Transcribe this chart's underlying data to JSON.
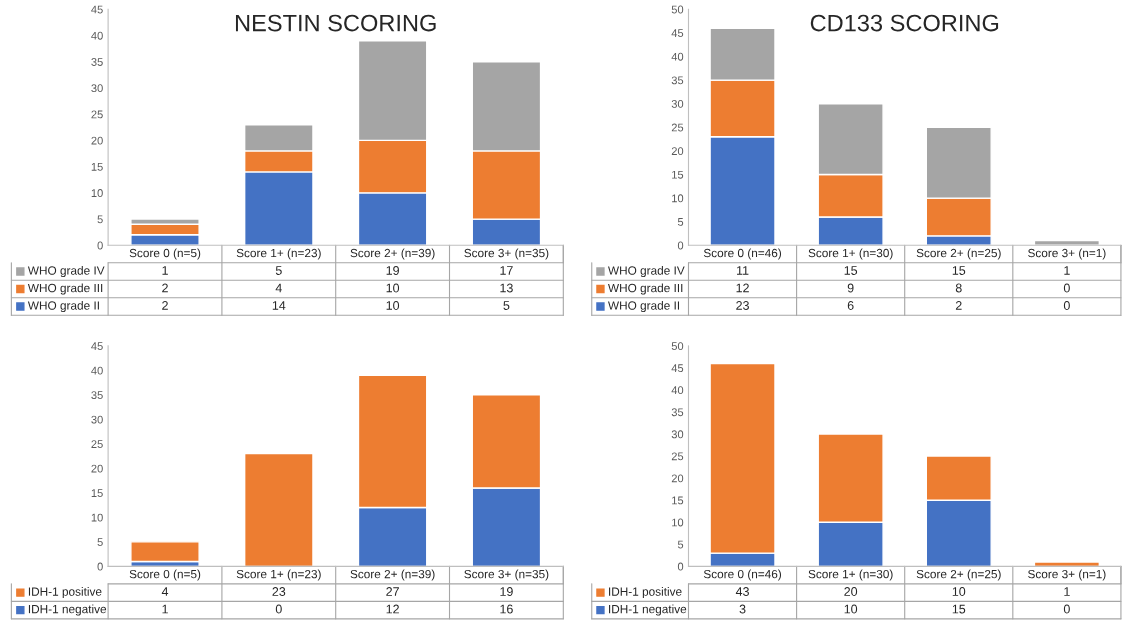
{
  "chart_data": [
    {
      "type": "bar",
      "title": "NESTIN SCORING",
      "stacked": true,
      "data_labels": true,
      "legend": "bottom",
      "grid": false,
      "categories": [
        "Score 0 (n=5)",
        "Score 1+ (n=23)",
        "Score 2+ (n=39)",
        "Score 3+ (n=35)"
      ],
      "ylim": [
        0,
        45
      ],
      "yticks": [
        0,
        5,
        10,
        15,
        20,
        25,
        30,
        35,
        40,
        45
      ],
      "series": [
        {
          "name": "WHO grade II",
          "color": "#4472c4",
          "values": [
            2,
            14,
            10,
            5
          ]
        },
        {
          "name": "WHO grade III",
          "color": "#ed7d31",
          "values": [
            2,
            4,
            10,
            13
          ]
        },
        {
          "name": "WHO grade IV",
          "color": "#a5a5a5",
          "values": [
            1,
            5,
            19,
            17
          ]
        }
      ]
    },
    {
      "type": "bar",
      "title": "CD133 SCORING",
      "stacked": true,
      "data_labels": true,
      "legend": "bottom",
      "grid": false,
      "categories": [
        "Score 0 (n=46)",
        "Score 1+ (n=30)",
        "Score 2+ (n=25)",
        "Score 3+ (n=1)"
      ],
      "ylim": [
        0,
        50
      ],
      "yticks": [
        0,
        5,
        10,
        15,
        20,
        25,
        30,
        35,
        40,
        45,
        50
      ],
      "series": [
        {
          "name": "WHO grade II",
          "color": "#4472c4",
          "values": [
            23,
            6,
            2,
            0
          ]
        },
        {
          "name": "WHO grade III",
          "color": "#ed7d31",
          "values": [
            12,
            9,
            8,
            0
          ]
        },
        {
          "name": "WHO grade IV",
          "color": "#a5a5a5",
          "values": [
            11,
            15,
            15,
            1
          ]
        }
      ]
    },
    {
      "type": "bar",
      "stacked": true,
      "data_labels": true,
      "legend": "bottom",
      "grid": false,
      "categories": [
        "Score 0 (n=5)",
        "Score 1+ (n=23)",
        "Score 2+ (n=39)",
        "Score 3+ (n=35)"
      ],
      "ylim": [
        0,
        45
      ],
      "yticks": [
        0,
        5,
        10,
        15,
        20,
        25,
        30,
        35,
        40,
        45
      ],
      "series": [
        {
          "name": "IDH-1 negative",
          "color": "#4472c4",
          "values": [
            1,
            0,
            12,
            16
          ]
        },
        {
          "name": "IDH-1 positive",
          "color": "#ed7d31",
          "values": [
            4,
            23,
            27,
            19
          ]
        }
      ]
    },
    {
      "type": "bar",
      "stacked": true,
      "data_labels": true,
      "legend": "bottom",
      "grid": false,
      "categories": [
        "Score 0 (n=46)",
        "Score 1+ (n=30)",
        "Score 2+ (n=25)",
        "Score 3+ (n=1)"
      ],
      "ylim": [
        0,
        50
      ],
      "yticks": [
        0,
        5,
        10,
        15,
        20,
        25,
        30,
        35,
        40,
        45,
        50
      ],
      "series": [
        {
          "name": "IDH-1 negative",
          "color": "#4472c4",
          "values": [
            3,
            10,
            15,
            0
          ]
        },
        {
          "name": "IDH-1 positive",
          "color": "#ed7d31",
          "values": [
            43,
            20,
            10,
            1
          ]
        }
      ]
    }
  ]
}
